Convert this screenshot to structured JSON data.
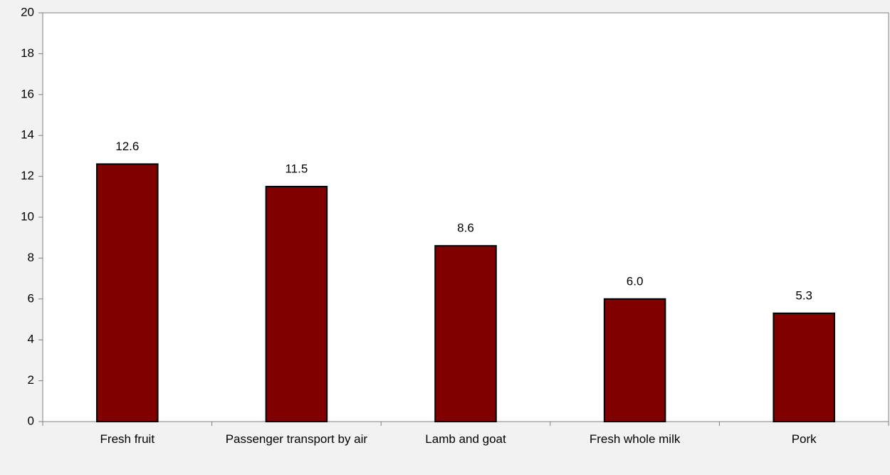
{
  "chart_data": {
    "type": "bar",
    "categories": [
      "Fresh fruit",
      "Passenger transport by air",
      "Lamb and goat",
      "Fresh whole milk",
      "Pork"
    ],
    "values": [
      12.6,
      11.5,
      8.6,
      6.0,
      5.3
    ],
    "value_labels": [
      "12.6",
      "11.5",
      "8.6",
      "6.0",
      "5.3"
    ],
    "color": "#800000",
    "ylim": [
      0,
      20
    ],
    "yticks": [
      0,
      2,
      4,
      6,
      8,
      10,
      12,
      14,
      16,
      18,
      20
    ],
    "grid": false
  }
}
